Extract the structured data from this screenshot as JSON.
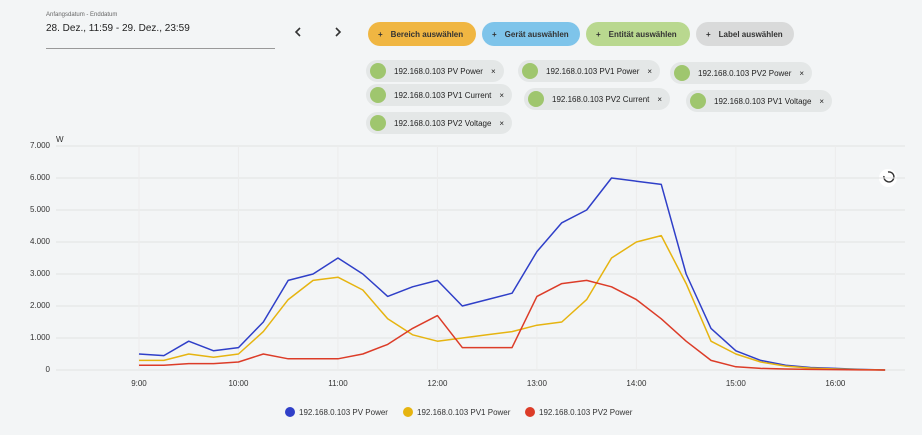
{
  "date_picker": {
    "label": "Anfangsdatum - Enddatum",
    "value": "28. Dez., 11:59 - 29. Dez., 23:59"
  },
  "buttons": [
    "Bereich auswählen",
    "Gerät auswählen",
    "Entität auswählen",
    "Label auswählen"
  ],
  "chips": [
    "192.168.0.103 PV Power",
    "192.168.0.103 PV1 Power",
    "192.168.0.103 PV2 Power",
    "192.168.0.103 PV1 Current",
    "192.168.0.103 PV2 Current",
    "192.168.0.103 PV1 Voltage",
    "192.168.0.103 PV2 Voltage"
  ],
  "chart_data": {
    "type": "line",
    "y_label": "W",
    "x": [
      9.0,
      9.25,
      9.5,
      9.75,
      10.0,
      10.25,
      10.5,
      10.75,
      11.0,
      11.25,
      11.5,
      11.75,
      12.0,
      12.25,
      12.5,
      12.75,
      13.0,
      13.25,
      13.5,
      13.75,
      14.0,
      14.25,
      14.5,
      14.75,
      15.0,
      15.25,
      15.5,
      15.75,
      16.0,
      16.25,
      16.5
    ],
    "xlim": [
      8,
      16.7
    ],
    "xticks": [
      {
        "value": 9,
        "label": "9:00"
      },
      {
        "value": 10,
        "label": "10:00"
      },
      {
        "value": 11,
        "label": "11:00"
      },
      {
        "value": 12,
        "label": "12:00"
      },
      {
        "value": 13,
        "label": "13:00"
      },
      {
        "value": 14,
        "label": "14:00"
      },
      {
        "value": 15,
        "label": "15:00"
      },
      {
        "value": 16,
        "label": "16:00"
      }
    ],
    "ylim": [
      0,
      7000
    ],
    "yticks": [
      0,
      {
        "value": 1000,
        "label": "1.000"
      },
      {
        "value": 2000,
        "label": "2.000"
      },
      {
        "value": 3000,
        "label": "3.000"
      },
      {
        "value": 4000,
        "label": "4.000"
      },
      {
        "value": 5000,
        "label": "5.000"
      },
      {
        "value": 6000,
        "label": "6.000"
      },
      {
        "value": 7000,
        "label": "7.000"
      }
    ],
    "grid": true,
    "series": [
      {
        "name": "192.168.0.103 PV Power",
        "color": "#2f3fc8",
        "values": [
          500,
          450,
          900,
          600,
          700,
          1500,
          2800,
          3000,
          3500,
          3000,
          2300,
          2600,
          2800,
          2000,
          2200,
          2400,
          3700,
          4600,
          5000,
          6000,
          5900,
          5800,
          3000,
          1300,
          600,
          300,
          150,
          80,
          50,
          20,
          0
        ]
      },
      {
        "name": "192.168.0.103 PV1 Power",
        "color": "#e6b410",
        "values": [
          300,
          300,
          500,
          400,
          500,
          1200,
          2200,
          2800,
          2900,
          2500,
          1600,
          1100,
          900,
          1000,
          1100,
          1200,
          1400,
          1500,
          2200,
          3500,
          4000,
          4200,
          2700,
          900,
          500,
          250,
          120,
          60,
          30,
          10,
          0
        ]
      },
      {
        "name": "192.168.0.103 PV2 Power",
        "color": "#dc3c28",
        "values": [
          150,
          150,
          200,
          200,
          250,
          500,
          350,
          350,
          350,
          500,
          800,
          1300,
          1700,
          700,
          700,
          700,
          2300,
          2700,
          2800,
          2600,
          2200,
          1600,
          900,
          300,
          100,
          50,
          30,
          20,
          10,
          5,
          0
        ]
      }
    ]
  }
}
